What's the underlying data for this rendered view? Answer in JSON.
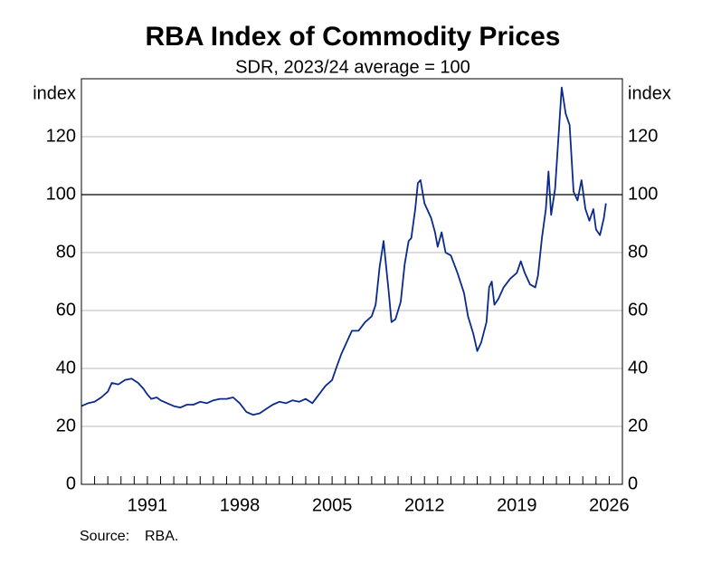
{
  "chart_data": {
    "type": "line",
    "title": "RBA Index of Commodity Prices",
    "subtitle": "SDR, 2023/24 average = 100",
    "ylabel": "index",
    "source_label": "Source:",
    "source": "RBA.",
    "x": [
      1986.0,
      1986.5,
      1987.0,
      1987.5,
      1988.0,
      1988.3,
      1988.8,
      1989.3,
      1989.8,
      1990.3,
      1990.7,
      1991.0,
      1991.3,
      1991.7,
      1992.0,
      1992.5,
      1993.0,
      1993.5,
      1994.0,
      1994.5,
      1995.0,
      1995.5,
      1996.0,
      1996.5,
      1997.0,
      1997.5,
      1998.0,
      1998.5,
      1999.0,
      1999.5,
      2000.0,
      2000.5,
      2001.0,
      2001.5,
      2002.0,
      2002.5,
      2003.0,
      2003.5,
      2004.0,
      2004.5,
      2005.0,
      2005.3,
      2005.7,
      2006.0,
      2006.5,
      2007.0,
      2007.5,
      2008.0,
      2008.3,
      2008.6,
      2008.9,
      2009.1,
      2009.3,
      2009.5,
      2009.8,
      2010.2,
      2010.5,
      2010.8,
      2011.0,
      2011.3,
      2011.5,
      2011.7,
      2012.0,
      2012.5,
      2012.8,
      2013.0,
      2013.3,
      2013.6,
      2014.0,
      2014.5,
      2015.0,
      2015.3,
      2015.7,
      2016.0,
      2016.3,
      2016.7,
      2016.9,
      2017.1,
      2017.3,
      2017.6,
      2018.0,
      2018.5,
      2019.0,
      2019.3,
      2019.6,
      2020.0,
      2020.4,
      2020.6,
      2020.9,
      2021.2,
      2021.4,
      2021.6,
      2021.9,
      2022.2,
      2022.4,
      2022.7,
      2023.0,
      2023.3,
      2023.6,
      2023.9,
      2024.2,
      2024.5,
      2024.8,
      2025.0,
      2025.3,
      2025.6,
      2025.75
    ],
    "series": [
      {
        "name": "RBA Index of Commodity Prices",
        "color": "#0a2a8c",
        "values": [
          27,
          28,
          28.5,
          30,
          32,
          35,
          34.5,
          36,
          36.5,
          35,
          33,
          31,
          29.5,
          30,
          29,
          28,
          27,
          26.5,
          27.5,
          27.5,
          28.5,
          28,
          29,
          29.5,
          29.5,
          30,
          28,
          25,
          24,
          24.5,
          26,
          27.5,
          28.5,
          28,
          29,
          28.5,
          29.5,
          28,
          31,
          34,
          36,
          40,
          45,
          48,
          53,
          53,
          56,
          58,
          62,
          75,
          84,
          75,
          66,
          56,
          57,
          63,
          76,
          84,
          85,
          95,
          104,
          105,
          97,
          92,
          87,
          82,
          87,
          80,
          79,
          73,
          66,
          58,
          52,
          46,
          49,
          56,
          68,
          70,
          62,
          64,
          68,
          71,
          73,
          77,
          73,
          69,
          68,
          72,
          85,
          95,
          108,
          93,
          102,
          123,
          137,
          128,
          124,
          101,
          98,
          105,
          95,
          91,
          95,
          88,
          86,
          92,
          97
        ]
      }
    ],
    "xlim": [
      1986,
      2027
    ],
    "xticks": [
      1991,
      1998,
      2005,
      2012,
      2019,
      2026
    ],
    "minor_xticks": [
      1987,
      1988,
      1989,
      1990,
      1991,
      1992,
      1993,
      1994,
      1995,
      1996,
      1997,
      1998,
      1999,
      2000,
      2001,
      2002,
      2003,
      2004,
      2005,
      2006,
      2007,
      2008,
      2009,
      2010,
      2011,
      2012,
      2013,
      2014,
      2015,
      2016,
      2017,
      2018,
      2019,
      2020,
      2021,
      2022,
      2023,
      2024,
      2025,
      2026
    ],
    "ylim": [
      0,
      140
    ],
    "yticks": [
      0,
      20,
      40,
      60,
      80,
      100,
      120
    ],
    "reference_line": 100,
    "grid": true
  }
}
